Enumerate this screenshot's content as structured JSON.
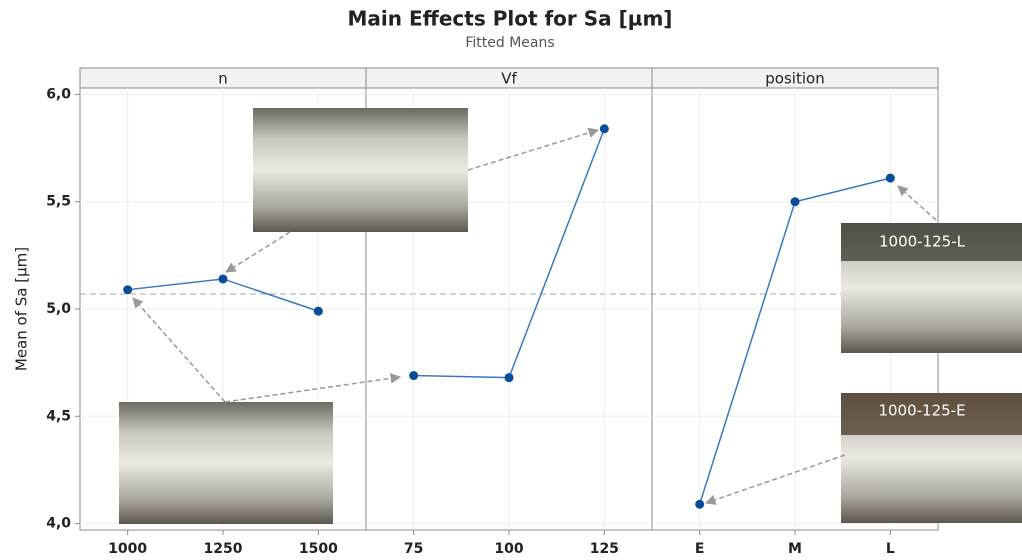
{
  "header": {
    "title": "Main Effects Plot for Sa [µm]",
    "subtitle": "Fitted Means"
  },
  "chart_data": [
    {
      "type": "line",
      "title": "n",
      "ylabel": "Mean of Sa [µm]",
      "categories": [
        "1000",
        "1250",
        "1500"
      ],
      "values": [
        5.09,
        5.14,
        4.99
      ],
      "color": "#3a78c2",
      "marker_color": "#0a4c9a",
      "ylim": [
        3.97,
        6.03
      ],
      "yticks": [
        {
          "value": 4,
          "label": "4,0"
        },
        {
          "value": 4.5,
          "label": "4,5"
        },
        {
          "value": 5,
          "label": "5,0"
        },
        {
          "value": 5.5,
          "label": "5,5"
        },
        {
          "value": 6,
          "label": "6,0"
        }
      ],
      "reference_line": 5.07,
      "grid": true
    },
    {
      "type": "line",
      "title": "Vf",
      "categories": [
        "75",
        "100",
        "125"
      ],
      "values": [
        4.69,
        4.68,
        5.84
      ],
      "color": "#3a78c2",
      "marker_color": "#0a4c9a",
      "ylim": [
        3.97,
        6.03
      ],
      "grid": true
    },
    {
      "type": "line",
      "title": "position",
      "categories": [
        "E",
        "M",
        "L"
      ],
      "values": [
        4.09,
        5.5,
        5.61
      ],
      "color": "#3a78c2",
      "marker_color": "#0a4c9a",
      "ylim": [
        3.97,
        6.03
      ],
      "grid": true
    }
  ],
  "annotations": [
    "1000-125-L",
    "1000-125-E"
  ]
}
